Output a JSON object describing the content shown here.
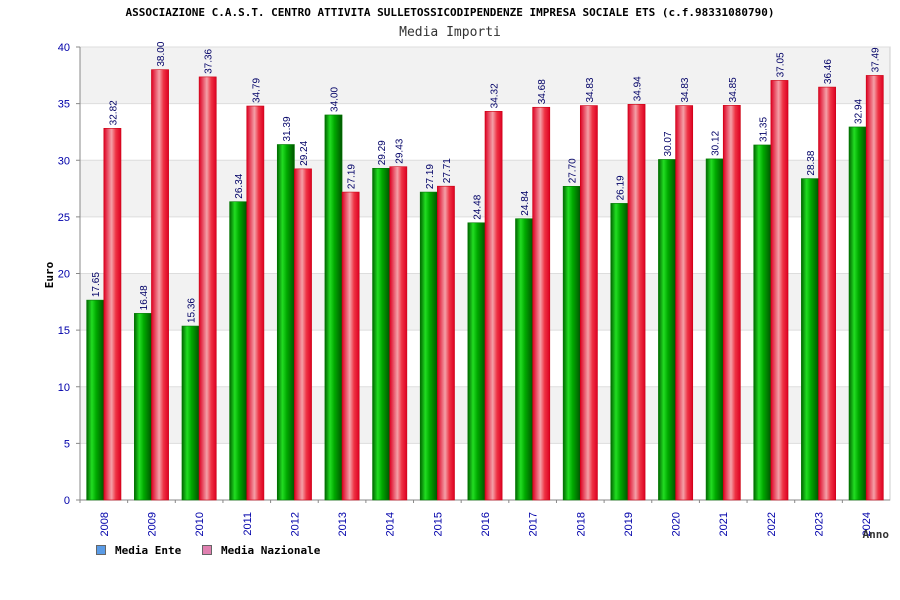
{
  "chart_data": {
    "type": "bar",
    "title": "ASSOCIAZIONE C.A.S.T. CENTRO ATTIVITA SULLETOSSICODIPENDENZE IMPRESA SOCIALE ETS (c.f.98331080790)",
    "subtitle": "Media Importi",
    "xlabel": "Anno",
    "ylabel": "Euro",
    "ylim": [
      0,
      40
    ],
    "yticks": [
      "0",
      "5",
      "10",
      "15",
      "20",
      "25",
      "30",
      "35",
      "40"
    ],
    "grid": true,
    "legend_position": "bottom-left",
    "categories": [
      "2008",
      "2009",
      "2010",
      "2011",
      "2012",
      "2013",
      "2014",
      "2015",
      "2016",
      "2017",
      "2018",
      "2019",
      "2020",
      "2021",
      "2022",
      "2023",
      "2024"
    ],
    "series": [
      {
        "name": "Media Ente",
        "color": "#00aa00",
        "legend_color": "#5a9be6",
        "values": [
          17.65,
          16.48,
          15.36,
          26.34,
          31.39,
          34.0,
          29.29,
          27.19,
          24.48,
          24.84,
          27.7,
          26.19,
          30.07,
          30.12,
          31.35,
          28.38,
          32.94
        ],
        "labels": [
          "17.65",
          "16.48",
          "15.36",
          "26.34",
          "31.39",
          "34.00",
          "29.29",
          "27.19",
          "24.48",
          "24.84",
          "27.70",
          "26.19",
          "30.07",
          "30.12",
          "31.35",
          "28.38",
          "32.94"
        ]
      },
      {
        "name": "Media Nazionale",
        "color": "#ee1122",
        "legend_color": "#e080b0",
        "values": [
          32.82,
          38.0,
          37.36,
          34.79,
          29.24,
          27.19,
          29.43,
          27.71,
          34.32,
          34.68,
          34.83,
          34.94,
          34.83,
          34.85,
          37.05,
          36.46,
          37.49
        ],
        "labels": [
          "32.82",
          "38.00",
          "37.36",
          "34.79",
          "29.24",
          "27.19",
          "29.43",
          "27.71",
          "34.32",
          "34.68",
          "34.83",
          "34.94",
          "34.83",
          "34.85",
          "37.05",
          "36.46",
          "37.49"
        ]
      }
    ]
  }
}
